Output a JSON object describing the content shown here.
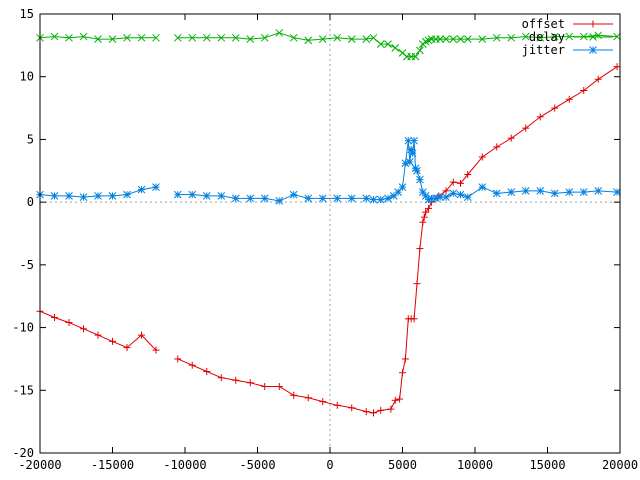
{
  "chart_data": {
    "type": "line",
    "xlim": [
      -20000,
      20000
    ],
    "ylim": [
      -20,
      15
    ],
    "xticks": [
      -20000,
      -15000,
      -10000,
      -5000,
      0,
      5000,
      10000,
      15000,
      20000
    ],
    "yticks": [
      -20,
      -15,
      -10,
      -5,
      0,
      5,
      10,
      15
    ],
    "grid": false,
    "zero_lines": true,
    "legend_position": "top-right",
    "series": [
      {
        "name": "offset",
        "color": "#e00000",
        "marker": "plus",
        "segments": [
          [
            [
              -20000,
              -8.7
            ],
            [
              -19000,
              -9.2
            ],
            [
              -18000,
              -9.6
            ],
            [
              -17000,
              -10.1
            ],
            [
              -16000,
              -10.6
            ],
            [
              -15000,
              -11.1
            ],
            [
              -14000,
              -11.6
            ],
            [
              -13000,
              -10.6
            ],
            [
              -12000,
              -11.8
            ]
          ],
          [
            [
              -10500,
              -12.5
            ],
            [
              -9500,
              -13.0
            ],
            [
              -8500,
              -13.5
            ],
            [
              -7500,
              -14.0
            ],
            [
              -6500,
              -14.2
            ],
            [
              -5500,
              -14.4
            ],
            [
              -4500,
              -14.7
            ],
            [
              -3500,
              -14.7
            ],
            [
              -2500,
              -15.4
            ],
            [
              -1500,
              -15.6
            ],
            [
              -500,
              -15.9
            ],
            [
              500,
              -16.2
            ],
            [
              1500,
              -16.4
            ],
            [
              2500,
              -16.7
            ],
            [
              3000,
              -16.8
            ],
            [
              3500,
              -16.6
            ],
            [
              4200,
              -16.5
            ],
            [
              4500,
              -15.8
            ],
            [
              4800,
              -15.7
            ],
            [
              5000,
              -13.6
            ],
            [
              5200,
              -12.5
            ],
            [
              5400,
              -9.3
            ],
            [
              5600,
              -9.3
            ],
            [
              5800,
              -9.3
            ],
            [
              6000,
              -6.5
            ],
            [
              6200,
              -3.7
            ],
            [
              6400,
              -1.6
            ],
            [
              6500,
              -1.2
            ],
            [
              6600,
              -0.8
            ],
            [
              6800,
              -0.5
            ],
            [
              7000,
              0.0
            ],
            [
              7500,
              0.5
            ],
            [
              8000,
              0.9
            ],
            [
              8500,
              1.6
            ],
            [
              9000,
              1.5
            ],
            [
              9500,
              2.2
            ],
            [
              10500,
              3.6
            ],
            [
              11500,
              4.4
            ],
            [
              12500,
              5.1
            ],
            [
              13500,
              5.9
            ],
            [
              14500,
              6.8
            ],
            [
              15500,
              7.5
            ],
            [
              16500,
              8.2
            ],
            [
              17500,
              8.9
            ],
            [
              18500,
              9.8
            ],
            [
              19800,
              10.8
            ]
          ]
        ]
      },
      {
        "name": "delay",
        "color": "#00b000",
        "marker": "cross",
        "segments": [
          [
            [
              -20000,
              13.1
            ],
            [
              -19000,
              13.2
            ],
            [
              -18000,
              13.1
            ],
            [
              -17000,
              13.2
            ],
            [
              -16000,
              13.0
            ],
            [
              -15000,
              13.0
            ],
            [
              -14000,
              13.1
            ],
            [
              -13000,
              13.1
            ],
            [
              -12000,
              13.1
            ]
          ],
          [
            [
              -10500,
              13.1
            ],
            [
              -9500,
              13.1
            ],
            [
              -8500,
              13.1
            ],
            [
              -7500,
              13.1
            ],
            [
              -6500,
              13.1
            ],
            [
              -5500,
              13.0
            ],
            [
              -4500,
              13.1
            ],
            [
              -3500,
              13.5
            ],
            [
              -2500,
              13.1
            ],
            [
              -1500,
              12.9
            ],
            [
              -500,
              13.0
            ],
            [
              500,
              13.1
            ],
            [
              1500,
              13.0
            ],
            [
              2500,
              13.0
            ],
            [
              3000,
              13.1
            ],
            [
              3500,
              12.6
            ],
            [
              4000,
              12.6
            ],
            [
              4500,
              12.3
            ],
            [
              5000,
              11.9
            ],
            [
              5300,
              11.6
            ],
            [
              5600,
              11.6
            ],
            [
              5900,
              11.6
            ],
            [
              6200,
              12.1
            ],
            [
              6400,
              12.6
            ],
            [
              6600,
              12.8
            ],
            [
              6800,
              12.9
            ],
            [
              7000,
              13.0
            ],
            [
              7300,
              13.0
            ],
            [
              7600,
              13.0
            ],
            [
              8000,
              13.0
            ],
            [
              8500,
              13.0
            ],
            [
              9000,
              13.0
            ],
            [
              9500,
              13.0
            ],
            [
              10500,
              13.0
            ],
            [
              11500,
              13.1
            ],
            [
              12500,
              13.1
            ],
            [
              13500,
              13.2
            ],
            [
              14500,
              13.1
            ],
            [
              15500,
              13.2
            ],
            [
              16500,
              13.2
            ],
            [
              17500,
              13.2
            ],
            [
              18500,
              13.3
            ],
            [
              19800,
              13.2
            ]
          ]
        ]
      },
      {
        "name": "jitter",
        "color": "#0080e0",
        "marker": "star",
        "segments": [
          [
            [
              -20000,
              0.6
            ],
            [
              -19000,
              0.5
            ],
            [
              -18000,
              0.5
            ],
            [
              -17000,
              0.4
            ],
            [
              -16000,
              0.5
            ],
            [
              -15000,
              0.5
            ],
            [
              -14000,
              0.6
            ],
            [
              -13000,
              1.0
            ],
            [
              -12000,
              1.2
            ]
          ],
          [
            [
              -10500,
              0.6
            ],
            [
              -9500,
              0.6
            ],
            [
              -8500,
              0.5
            ],
            [
              -7500,
              0.5
            ],
            [
              -6500,
              0.3
            ],
            [
              -5500,
              0.3
            ],
            [
              -4500,
              0.3
            ],
            [
              -3500,
              0.1
            ],
            [
              -2500,
              0.6
            ],
            [
              -1500,
              0.3
            ],
            [
              -500,
              0.3
            ],
            [
              500,
              0.3
            ],
            [
              1500,
              0.3
            ],
            [
              2500,
              0.3
            ],
            [
              3000,
              0.2
            ],
            [
              3500,
              0.2
            ],
            [
              4000,
              0.3
            ],
            [
              4400,
              0.5
            ],
            [
              4700,
              0.8
            ],
            [
              5000,
              1.2
            ],
            [
              5200,
              3.1
            ],
            [
              5400,
              4.9
            ],
            [
              5500,
              3.2
            ],
            [
              5600,
              4.2
            ],
            [
              5700,
              3.9
            ],
            [
              5800,
              4.9
            ],
            [
              5900,
              2.7
            ],
            [
              6000,
              2.5
            ],
            [
              6200,
              1.8
            ],
            [
              6400,
              0.8
            ],
            [
              6600,
              0.5
            ],
            [
              6800,
              0.2
            ],
            [
              7000,
              0.3
            ],
            [
              7300,
              0.3
            ],
            [
              7600,
              0.4
            ],
            [
              8000,
              0.4
            ],
            [
              8500,
              0.7
            ],
            [
              9000,
              0.6
            ],
            [
              9500,
              0.4
            ],
            [
              10500,
              1.2
            ],
            [
              11500,
              0.7
            ],
            [
              12500,
              0.8
            ],
            [
              13500,
              0.9
            ],
            [
              14500,
              0.9
            ],
            [
              15500,
              0.7
            ],
            [
              16500,
              0.8
            ],
            [
              17500,
              0.8
            ],
            [
              18500,
              0.9
            ],
            [
              19800,
              0.8
            ]
          ]
        ]
      }
    ]
  }
}
